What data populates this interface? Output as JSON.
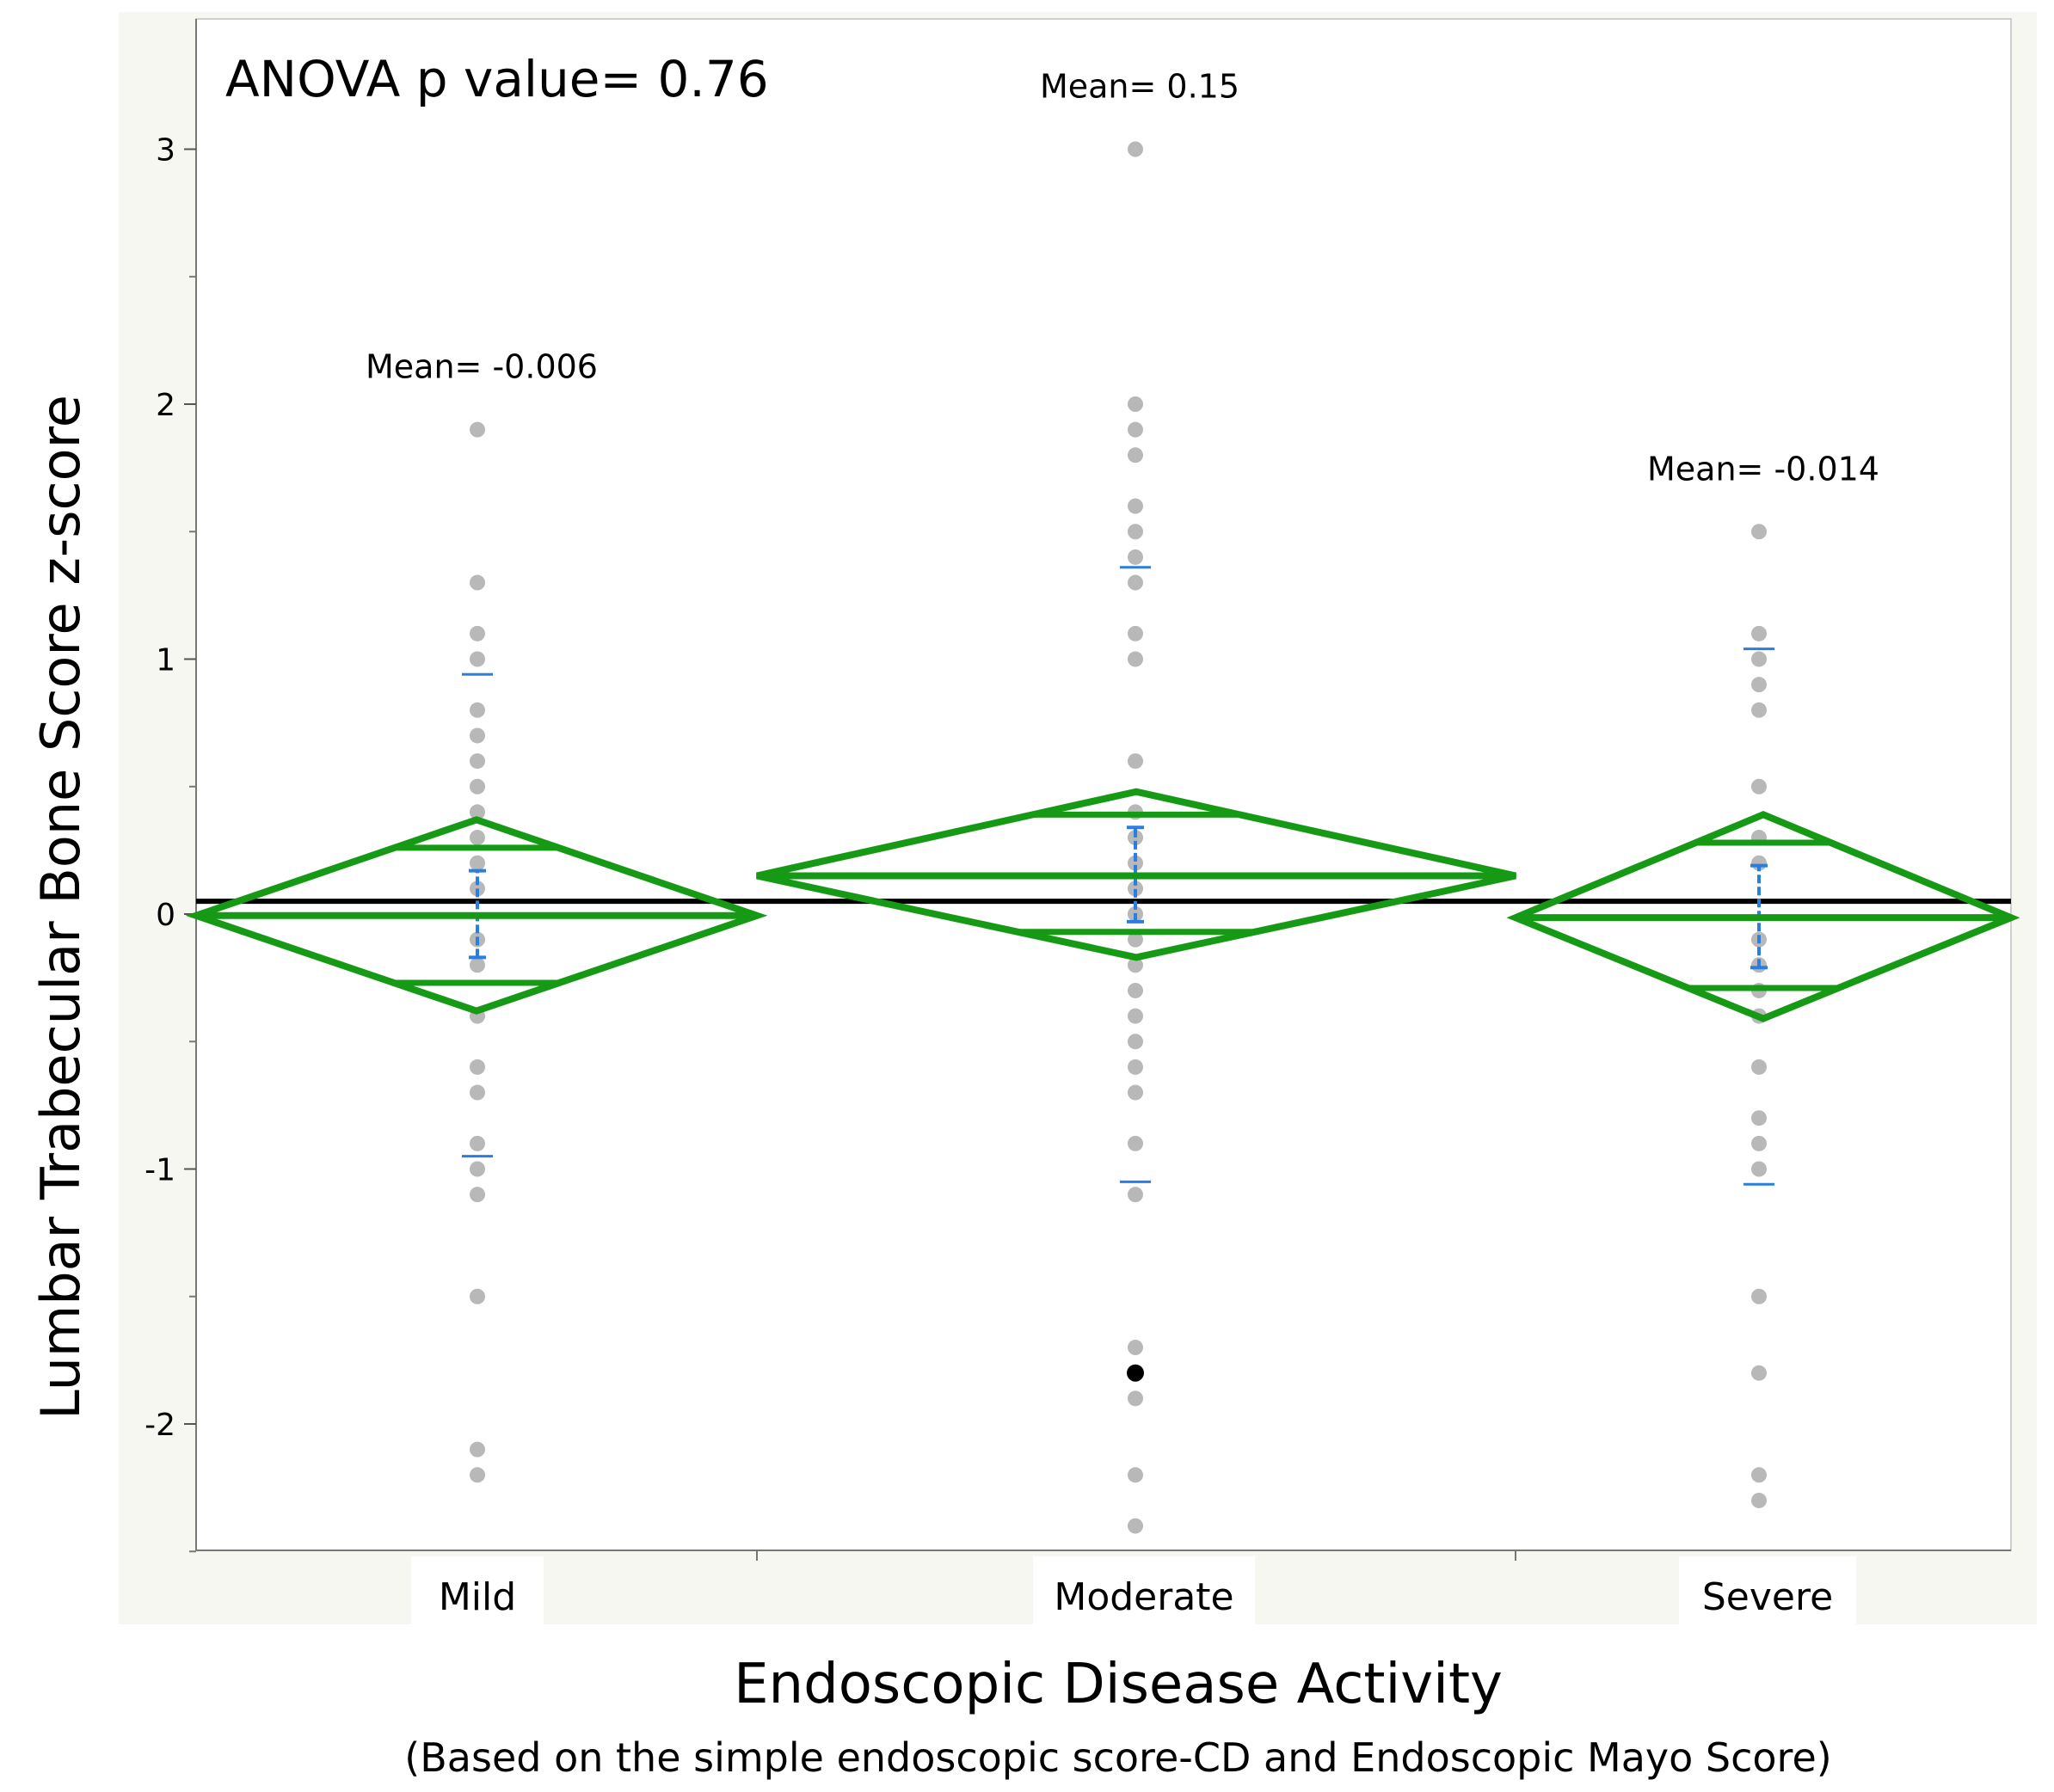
{
  "chart_data": {
    "type": "scatter",
    "title": "",
    "annotation": "ANOVA p value= 0.76",
    "xlabel": "Endoscopic Disease Activity",
    "xlabel_sub": "(Based on the simple endoscopic score-CD and Endoscopic Mayo Score)",
    "ylabel": "Lumbar Trabecular Bone Score z-score",
    "ylim": [
      -2.55,
      3.4
    ],
    "yticks": [
      3,
      2,
      1,
      0,
      -1,
      -2
    ],
    "ytick_labels": [
      "3",
      "2",
      "1",
      "0",
      "-1",
      "-2"
    ],
    "grand_mean": 0.05,
    "categories": [
      "Mild",
      "Moderate",
      "Severe"
    ],
    "groups": [
      {
        "name": "Mild",
        "mean_label": "Mean= -0.006",
        "mean": -0.006,
        "ci": [
          -0.38,
          0.37
        ],
        "overlap": [
          -0.27,
          0.26
        ],
        "sd_marks": [
          0.94,
          -0.95
        ],
        "se_bar": [
          -0.17,
          0.17
        ],
        "points": [
          1.9,
          1.3,
          1.1,
          1.0,
          0.8,
          0.7,
          0.6,
          0.5,
          0.4,
          0.3,
          0.2,
          0.1,
          -0.1,
          -0.2,
          -0.4,
          -0.6,
          -0.7,
          -0.9,
          -1.0,
          -1.1,
          -1.5,
          -2.1,
          -2.2
        ]
      },
      {
        "name": "Moderate",
        "mean_label": "Mean= 0.15",
        "mean": 0.15,
        "ci": [
          -0.17,
          0.48
        ],
        "overlap": [
          -0.07,
          0.39
        ],
        "sd_marks": [
          1.36,
          -1.05
        ],
        "se_bar": [
          -0.03,
          0.34
        ],
        "points": [
          3.0,
          2.0,
          1.9,
          1.8,
          1.6,
          1.5,
          1.4,
          1.3,
          1.1,
          1.0,
          0.6,
          0.4,
          0.3,
          0.2,
          0.1,
          0.0,
          -0.1,
          -0.2,
          -0.3,
          -0.4,
          -0.5,
          -0.6,
          -0.7,
          -0.9,
          -1.1,
          -1.7,
          -1.9,
          -2.2,
          -2.4
        ],
        "highlight_points": [
          -1.8
        ]
      },
      {
        "name": "Severe",
        "mean_label": "Mean= -0.014",
        "mean": -0.014,
        "ci": [
          -0.41,
          0.39
        ],
        "overlap": [
          -0.29,
          0.28
        ],
        "sd_marks": [
          1.04,
          -1.06
        ],
        "se_bar": [
          -0.21,
          0.19
        ],
        "points": [
          1.5,
          1.1,
          1.0,
          0.9,
          0.8,
          0.5,
          0.3,
          0.2,
          -0.1,
          -0.2,
          -0.3,
          -0.4,
          -0.6,
          -0.8,
          -0.9,
          -1.0,
          -1.5,
          -1.8,
          -2.2,
          -2.3
        ]
      }
    ],
    "colors": {
      "diamond": "#169a16",
      "grand_mean_line": "#000000",
      "points": "#b8b8b8",
      "highlight_point": "#000000",
      "error_bar": "#2a7de1",
      "panel_bg": "#f7f7f2"
    }
  }
}
